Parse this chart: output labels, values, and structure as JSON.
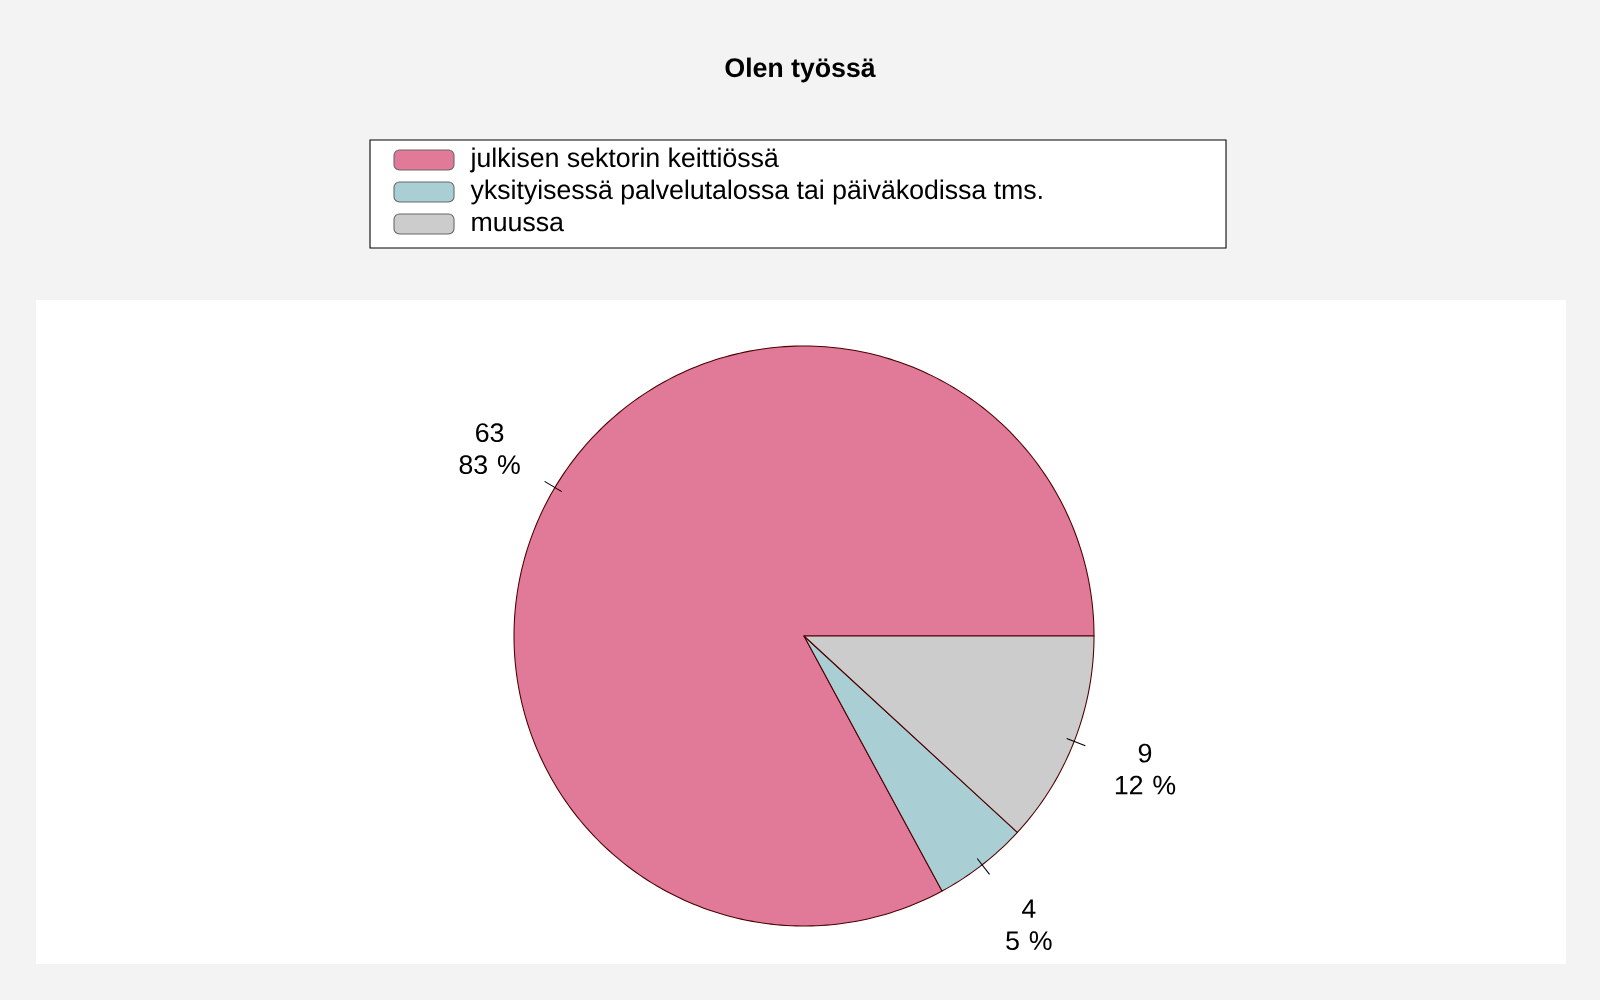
{
  "chart_data": {
    "type": "pie",
    "title": "Olen työssä",
    "categories": [
      "julkisen sektorin keittiössä",
      "yksityisessä palvelutalossa tai päiväkodissa tms.",
      "muussa"
    ],
    "values": [
      63,
      4,
      9
    ],
    "colors": [
      "#e07a98",
      "#a9cfd5",
      "#cccccc"
    ],
    "value_labels": [
      "63 83 %",
      "4 5 %",
      "9 12 %"
    ],
    "legend": "top"
  }
}
